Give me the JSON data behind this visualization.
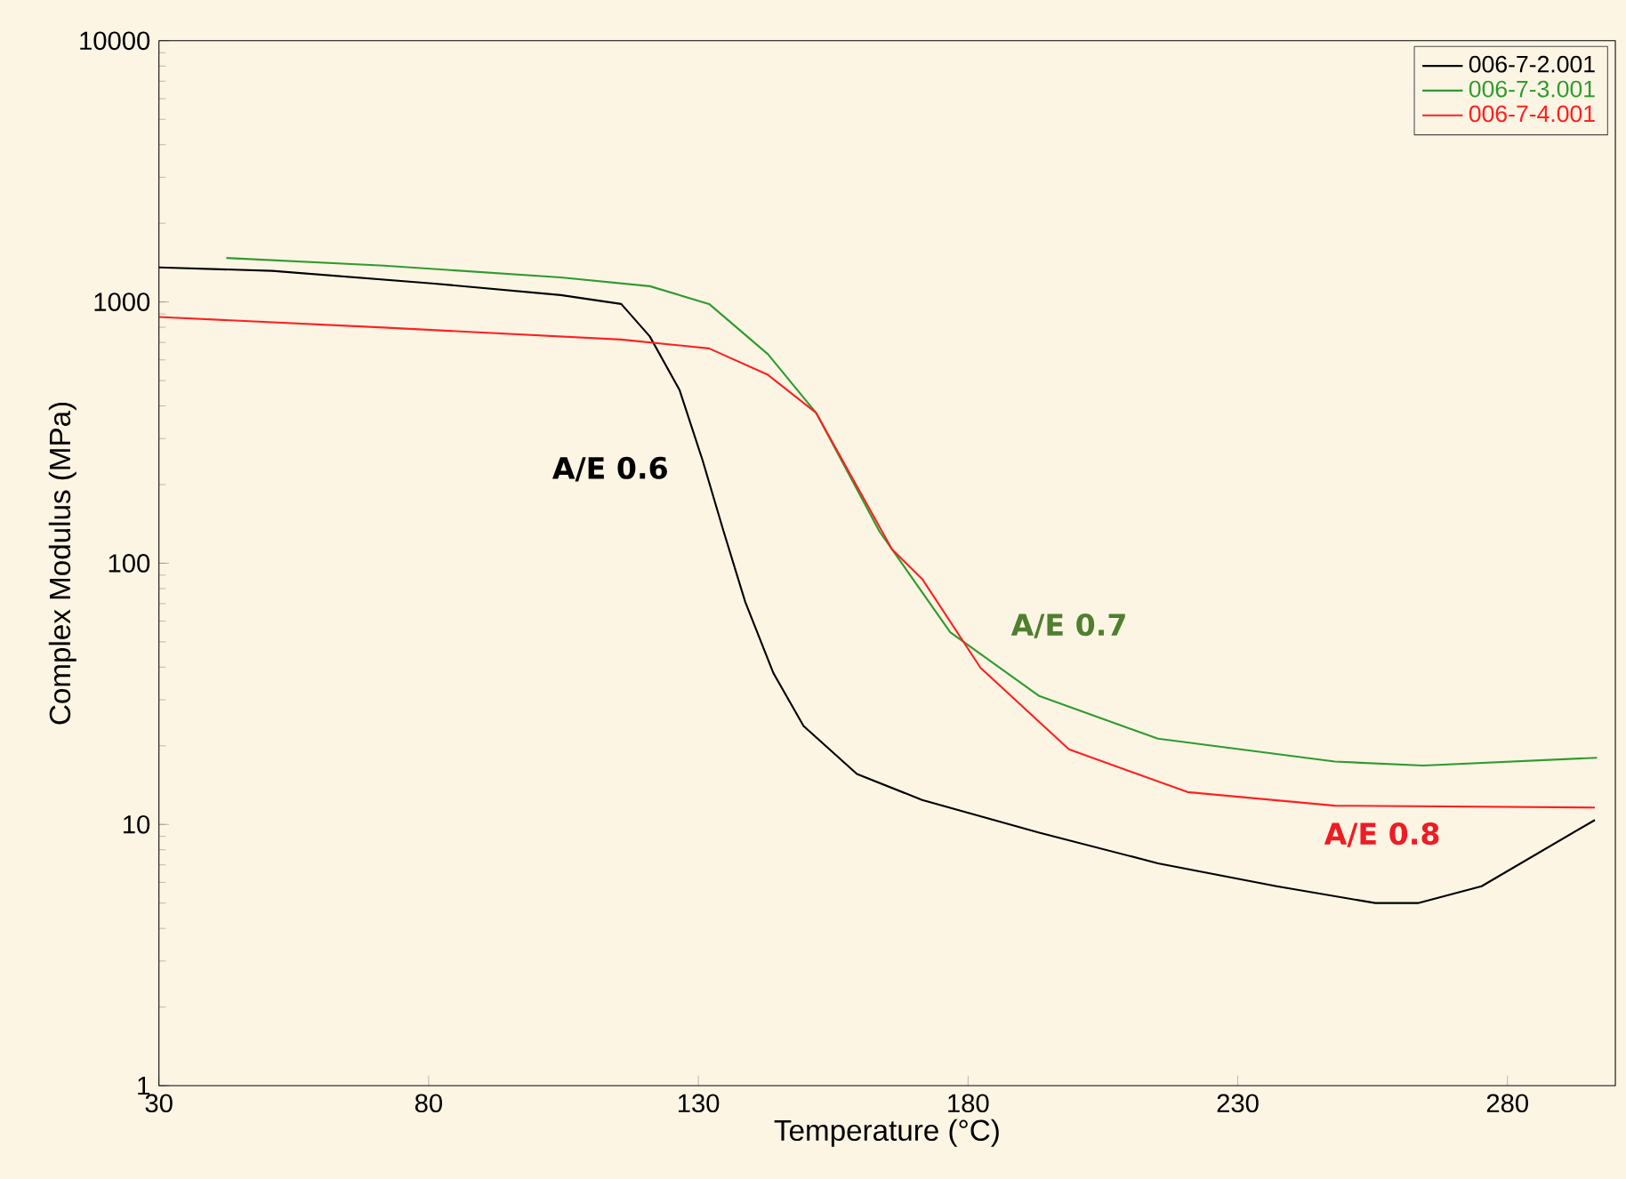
{
  "chart_data": {
    "type": "line",
    "xlabel": "Temperature (°C)",
    "ylabel": "Complex Modulus (MPa)",
    "log": "y",
    "xlim": [
      30,
      300
    ],
    "ylim": [
      1,
      10000
    ],
    "xticks": [
      30,
      80,
      130,
      180,
      230,
      280
    ],
    "yticks": [
      1,
      10,
      100,
      1000,
      10000
    ],
    "legend": "top right",
    "grid": false,
    "marker": "none",
    "line_style": "solid",
    "series": [
      {
        "name": "006-7-2.001",
        "color": "#000000",
        "x": [
          30,
          51,
          80.6,
          104.5,
          115.7,
          121,
          126.5,
          130.8,
          134.7,
          138.7,
          143.9,
          149.5,
          159.4,
          171.5,
          193.2,
          215.2,
          237.2,
          255.5,
          263.4,
          275.2,
          296.2
        ],
        "values": [
          1356,
          1315,
          1178,
          1062,
          982,
          738,
          461,
          247,
          132,
          71,
          38,
          23.8,
          15.6,
          12.4,
          9.3,
          7.1,
          5.8,
          5.0,
          5.0,
          5.8,
          10.4
        ]
      },
      {
        "name": "006-7-3.001",
        "color": "#2e9b2e",
        "x": [
          42.5,
          71.7,
          104.5,
          121,
          132,
          142.9,
          151.8,
          163.6,
          176.7,
          193.2,
          215.2,
          248,
          264.4,
          296.6
        ],
        "values": [
          1473,
          1377,
          1242,
          1149,
          982,
          631,
          377,
          132,
          54.4,
          31,
          21.3,
          17.4,
          16.8,
          18.0
        ]
      },
      {
        "name": "006-7-4.001",
        "color": "#ff2020",
        "x": [
          30,
          71.7,
          115.7,
          132,
          142.9,
          151.8,
          165.9,
          171.5,
          182.3,
          198.7,
          220.7,
          248,
          296.2
        ],
        "values": [
          876,
          798,
          718,
          664,
          526,
          377,
          113,
          87,
          39.8,
          19.4,
          13.3,
          11.8,
          11.6
        ]
      }
    ],
    "annotations": [
      "A/E 0.6",
      "A/E 0.7",
      "A/E 0.8"
    ]
  }
}
